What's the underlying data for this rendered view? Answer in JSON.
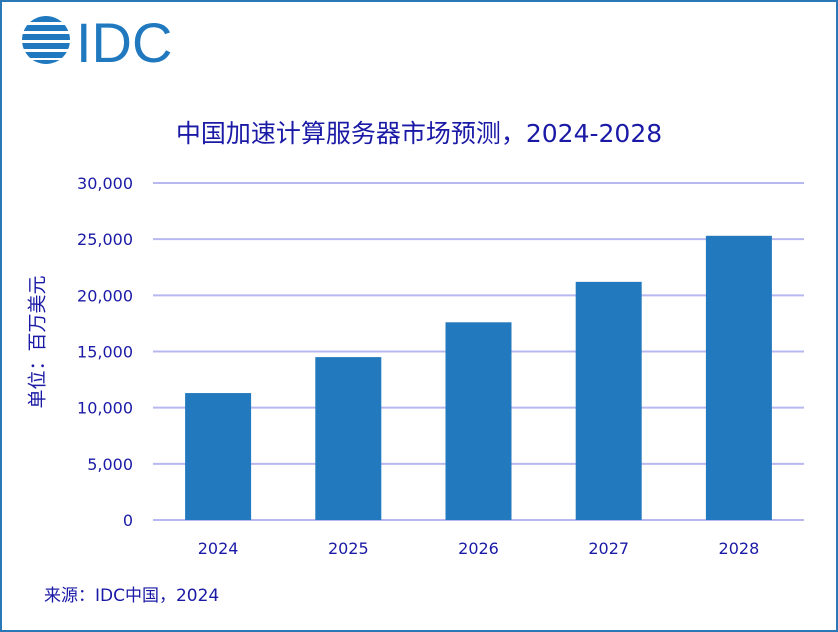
{
  "logo": {
    "text": "IDC",
    "color": "#2079bf"
  },
  "chart_data": {
    "type": "bar",
    "title": "中国加速计算服务器市场预测，2024-2028",
    "xlabel": "",
    "ylabel": "单位：百万美元",
    "categories": [
      "2024",
      "2025",
      "2026",
      "2027",
      "2028"
    ],
    "values": [
      11300,
      14500,
      17600,
      21200,
      25300
    ],
    "ylim": [
      0,
      30000
    ],
    "yticks": [
      0,
      5000,
      10000,
      15000,
      20000,
      25000,
      30000
    ],
    "ytick_labels": [
      "0",
      "5,000",
      "10,000",
      "15,000",
      "20,000",
      "25,000",
      "30,000"
    ],
    "grid": true,
    "bar_color": "#2379bd",
    "grid_color": "#b8b8f0",
    "source": "来源：IDC中国，2024"
  }
}
